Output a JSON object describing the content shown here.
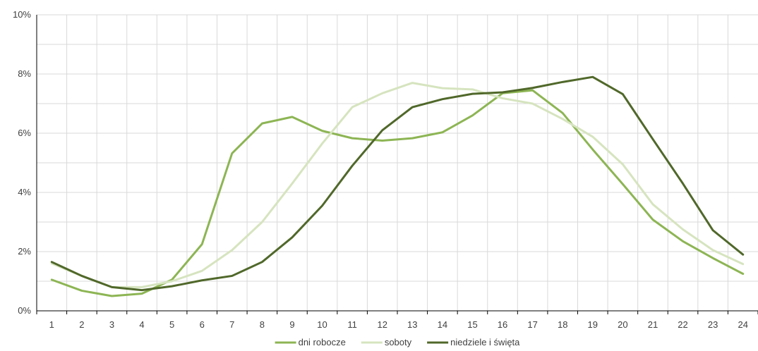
{
  "colors": {
    "grid": "#d9d9d9",
    "axis": "#000000",
    "text": "#404040"
  },
  "chart_data": {
    "type": "line",
    "title": "",
    "xlabel": "",
    "ylabel": "",
    "grid": true,
    "legend_position": "bottom",
    "x": [
      1,
      2,
      3,
      4,
      5,
      6,
      7,
      8,
      9,
      10,
      11,
      12,
      13,
      14,
      15,
      16,
      17,
      18,
      19,
      20,
      21,
      22,
      23,
      24
    ],
    "ylim": [
      0,
      10
    ],
    "ytick_values": [
      0,
      2,
      4,
      6,
      8,
      10
    ],
    "ytick_labels": [
      "0%",
      "2%",
      "4%",
      "6%",
      "8%",
      "10%"
    ],
    "series": [
      {
        "name": "dni robocze",
        "color": "#8db554",
        "values": [
          1.05,
          0.68,
          0.5,
          0.58,
          1.05,
          2.25,
          5.32,
          6.33,
          6.55,
          6.08,
          5.83,
          5.75,
          5.83,
          6.03,
          6.6,
          7.35,
          7.45,
          6.68,
          5.45,
          4.28,
          3.08,
          2.35,
          1.78,
          1.25
        ]
      },
      {
        "name": "soboty",
        "color": "#d6e4bf",
        "values": [
          1.6,
          1.18,
          0.8,
          0.8,
          1.0,
          1.35,
          2.05,
          3.0,
          4.3,
          5.65,
          6.88,
          7.35,
          7.7,
          7.52,
          7.48,
          7.18,
          7.0,
          6.48,
          5.88,
          4.95,
          3.6,
          2.75,
          2.05,
          1.58
        ]
      },
      {
        "name": "niedziele i święta",
        "color": "#50682a",
        "values": [
          1.65,
          1.18,
          0.8,
          0.7,
          0.83,
          1.03,
          1.18,
          1.65,
          2.48,
          3.55,
          4.9,
          6.1,
          6.88,
          7.15,
          7.33,
          7.38,
          7.53,
          7.73,
          7.9,
          7.32,
          5.8,
          4.3,
          2.72,
          1.9
        ]
      }
    ]
  }
}
